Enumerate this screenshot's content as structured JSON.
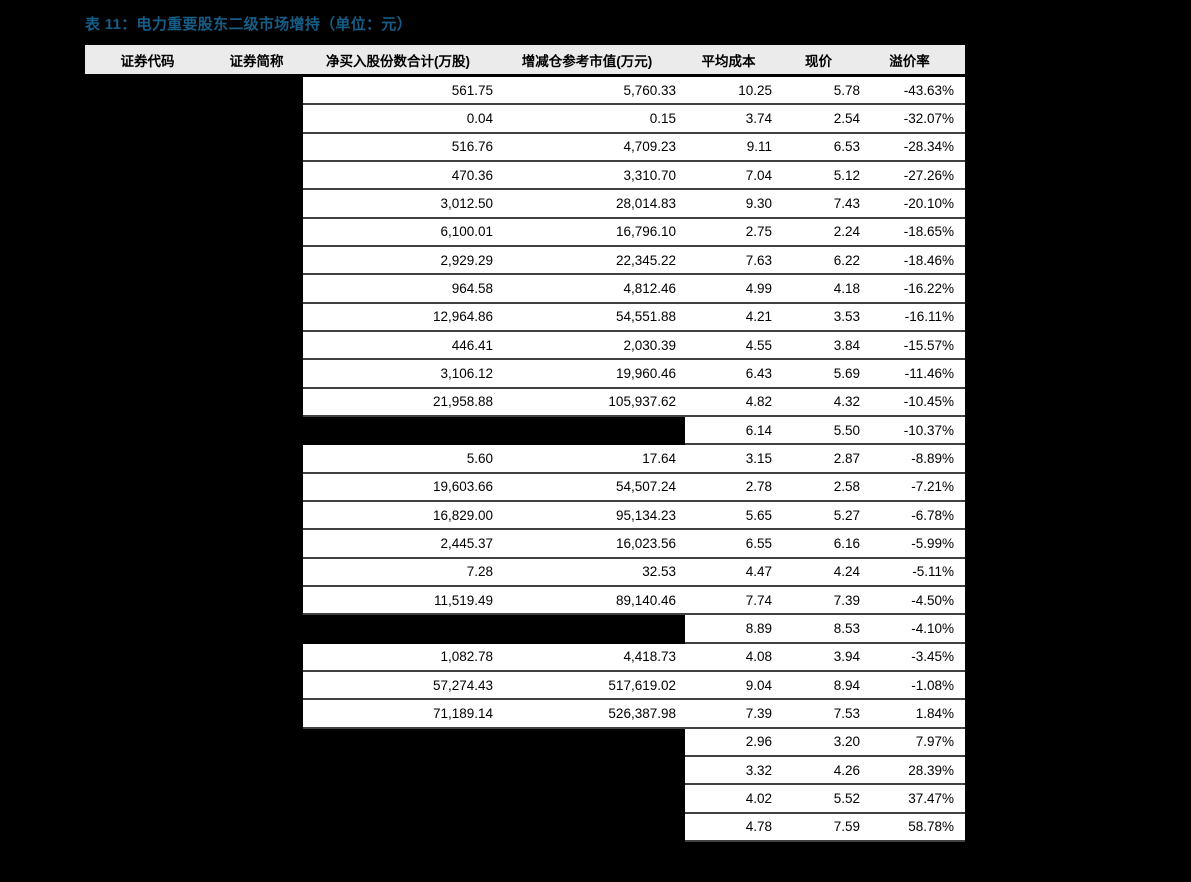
{
  "page": {
    "background_color": "#000000",
    "title_color": "#165d87",
    "header_bg_color": "#ebebeb",
    "row_bg_color": "#ffffff",
    "separator_color": "#414141"
  },
  "title": {
    "text": "表 11：电力重要股东二级市场增持（单位：元）"
  },
  "table": {
    "columns": [
      "证券代码",
      "证券简称",
      "净买入股份数合计(万股)",
      "增减仓参考市值(万元)",
      "平均成本",
      "现价",
      "溢价率"
    ],
    "rows": [
      {
        "left_blacked_out": false,
        "net_buy_shares": "561.75",
        "ref_market_value": "5,760.33",
        "avg_cost": "10.25",
        "current_price": "5.78",
        "premium_rate": "-43.63%"
      },
      {
        "left_blacked_out": false,
        "net_buy_shares": "0.04",
        "ref_market_value": "0.15",
        "avg_cost": "3.74",
        "current_price": "2.54",
        "premium_rate": "-32.07%"
      },
      {
        "left_blacked_out": false,
        "net_buy_shares": "516.76",
        "ref_market_value": "4,709.23",
        "avg_cost": "9.11",
        "current_price": "6.53",
        "premium_rate": "-28.34%"
      },
      {
        "left_blacked_out": false,
        "net_buy_shares": "470.36",
        "ref_market_value": "3,310.70",
        "avg_cost": "7.04",
        "current_price": "5.12",
        "premium_rate": "-27.26%"
      },
      {
        "left_blacked_out": false,
        "net_buy_shares": "3,012.50",
        "ref_market_value": "28,014.83",
        "avg_cost": "9.30",
        "current_price": "7.43",
        "premium_rate": "-20.10%"
      },
      {
        "left_blacked_out": false,
        "net_buy_shares": "6,100.01",
        "ref_market_value": "16,796.10",
        "avg_cost": "2.75",
        "current_price": "2.24",
        "premium_rate": "-18.65%"
      },
      {
        "left_blacked_out": false,
        "net_buy_shares": "2,929.29",
        "ref_market_value": "22,345.22",
        "avg_cost": "7.63",
        "current_price": "6.22",
        "premium_rate": "-18.46%"
      },
      {
        "left_blacked_out": false,
        "net_buy_shares": "964.58",
        "ref_market_value": "4,812.46",
        "avg_cost": "4.99",
        "current_price": "4.18",
        "premium_rate": "-16.22%"
      },
      {
        "left_blacked_out": false,
        "net_buy_shares": "12,964.86",
        "ref_market_value": "54,551.88",
        "avg_cost": "4.21",
        "current_price": "3.53",
        "premium_rate": "-16.11%"
      },
      {
        "left_blacked_out": false,
        "net_buy_shares": "446.41",
        "ref_market_value": "2,030.39",
        "avg_cost": "4.55",
        "current_price": "3.84",
        "premium_rate": "-15.57%"
      },
      {
        "left_blacked_out": false,
        "net_buy_shares": "3,106.12",
        "ref_market_value": "19,960.46",
        "avg_cost": "6.43",
        "current_price": "5.69",
        "premium_rate": "-11.46%"
      },
      {
        "left_blacked_out": false,
        "net_buy_shares": "21,958.88",
        "ref_market_value": "105,937.62",
        "avg_cost": "4.82",
        "current_price": "4.32",
        "premium_rate": "-10.45%"
      },
      {
        "left_blacked_out": true,
        "net_buy_shares": "",
        "ref_market_value": "",
        "avg_cost": "6.14",
        "current_price": "5.50",
        "premium_rate": "-10.37%"
      },
      {
        "left_blacked_out": false,
        "net_buy_shares": "5.60",
        "ref_market_value": "17.64",
        "avg_cost": "3.15",
        "current_price": "2.87",
        "premium_rate": "-8.89%"
      },
      {
        "left_blacked_out": false,
        "net_buy_shares": "19,603.66",
        "ref_market_value": "54,507.24",
        "avg_cost": "2.78",
        "current_price": "2.58",
        "premium_rate": "-7.21%"
      },
      {
        "left_blacked_out": false,
        "net_buy_shares": "16,829.00",
        "ref_market_value": "95,134.23",
        "avg_cost": "5.65",
        "current_price": "5.27",
        "premium_rate": "-6.78%"
      },
      {
        "left_blacked_out": false,
        "net_buy_shares": "2,445.37",
        "ref_market_value": "16,023.56",
        "avg_cost": "6.55",
        "current_price": "6.16",
        "premium_rate": "-5.99%"
      },
      {
        "left_blacked_out": false,
        "net_buy_shares": "7.28",
        "ref_market_value": "32.53",
        "avg_cost": "4.47",
        "current_price": "4.24",
        "premium_rate": "-5.11%"
      },
      {
        "left_blacked_out": false,
        "net_buy_shares": "11,519.49",
        "ref_market_value": "89,140.46",
        "avg_cost": "7.74",
        "current_price": "7.39",
        "premium_rate": "-4.50%"
      },
      {
        "left_blacked_out": true,
        "net_buy_shares": "",
        "ref_market_value": "",
        "avg_cost": "8.89",
        "current_price": "8.53",
        "premium_rate": "-4.10%"
      },
      {
        "left_blacked_out": false,
        "net_buy_shares": "1,082.78",
        "ref_market_value": "4,418.73",
        "avg_cost": "4.08",
        "current_price": "3.94",
        "premium_rate": "-3.45%"
      },
      {
        "left_blacked_out": false,
        "net_buy_shares": "57,274.43",
        "ref_market_value": "517,619.02",
        "avg_cost": "9.04",
        "current_price": "8.94",
        "premium_rate": "-1.08%"
      },
      {
        "left_blacked_out": false,
        "net_buy_shares": "71,189.14",
        "ref_market_value": "526,387.98",
        "avg_cost": "7.39",
        "current_price": "7.53",
        "premium_rate": "1.84%"
      },
      {
        "left_blacked_out": true,
        "net_buy_shares": "",
        "ref_market_value": "",
        "avg_cost": "2.96",
        "current_price": "3.20",
        "premium_rate": "7.97%"
      },
      {
        "left_blacked_out": true,
        "net_buy_shares": "",
        "ref_market_value": "",
        "avg_cost": "3.32",
        "current_price": "4.26",
        "premium_rate": "28.39%"
      },
      {
        "left_blacked_out": true,
        "net_buy_shares": "",
        "ref_market_value": "",
        "avg_cost": "4.02",
        "current_price": "5.52",
        "premium_rate": "37.47%"
      },
      {
        "left_blacked_out": true,
        "net_buy_shares": "",
        "ref_market_value": "",
        "avg_cost": "4.78",
        "current_price": "7.59",
        "premium_rate": "58.78%"
      }
    ]
  }
}
